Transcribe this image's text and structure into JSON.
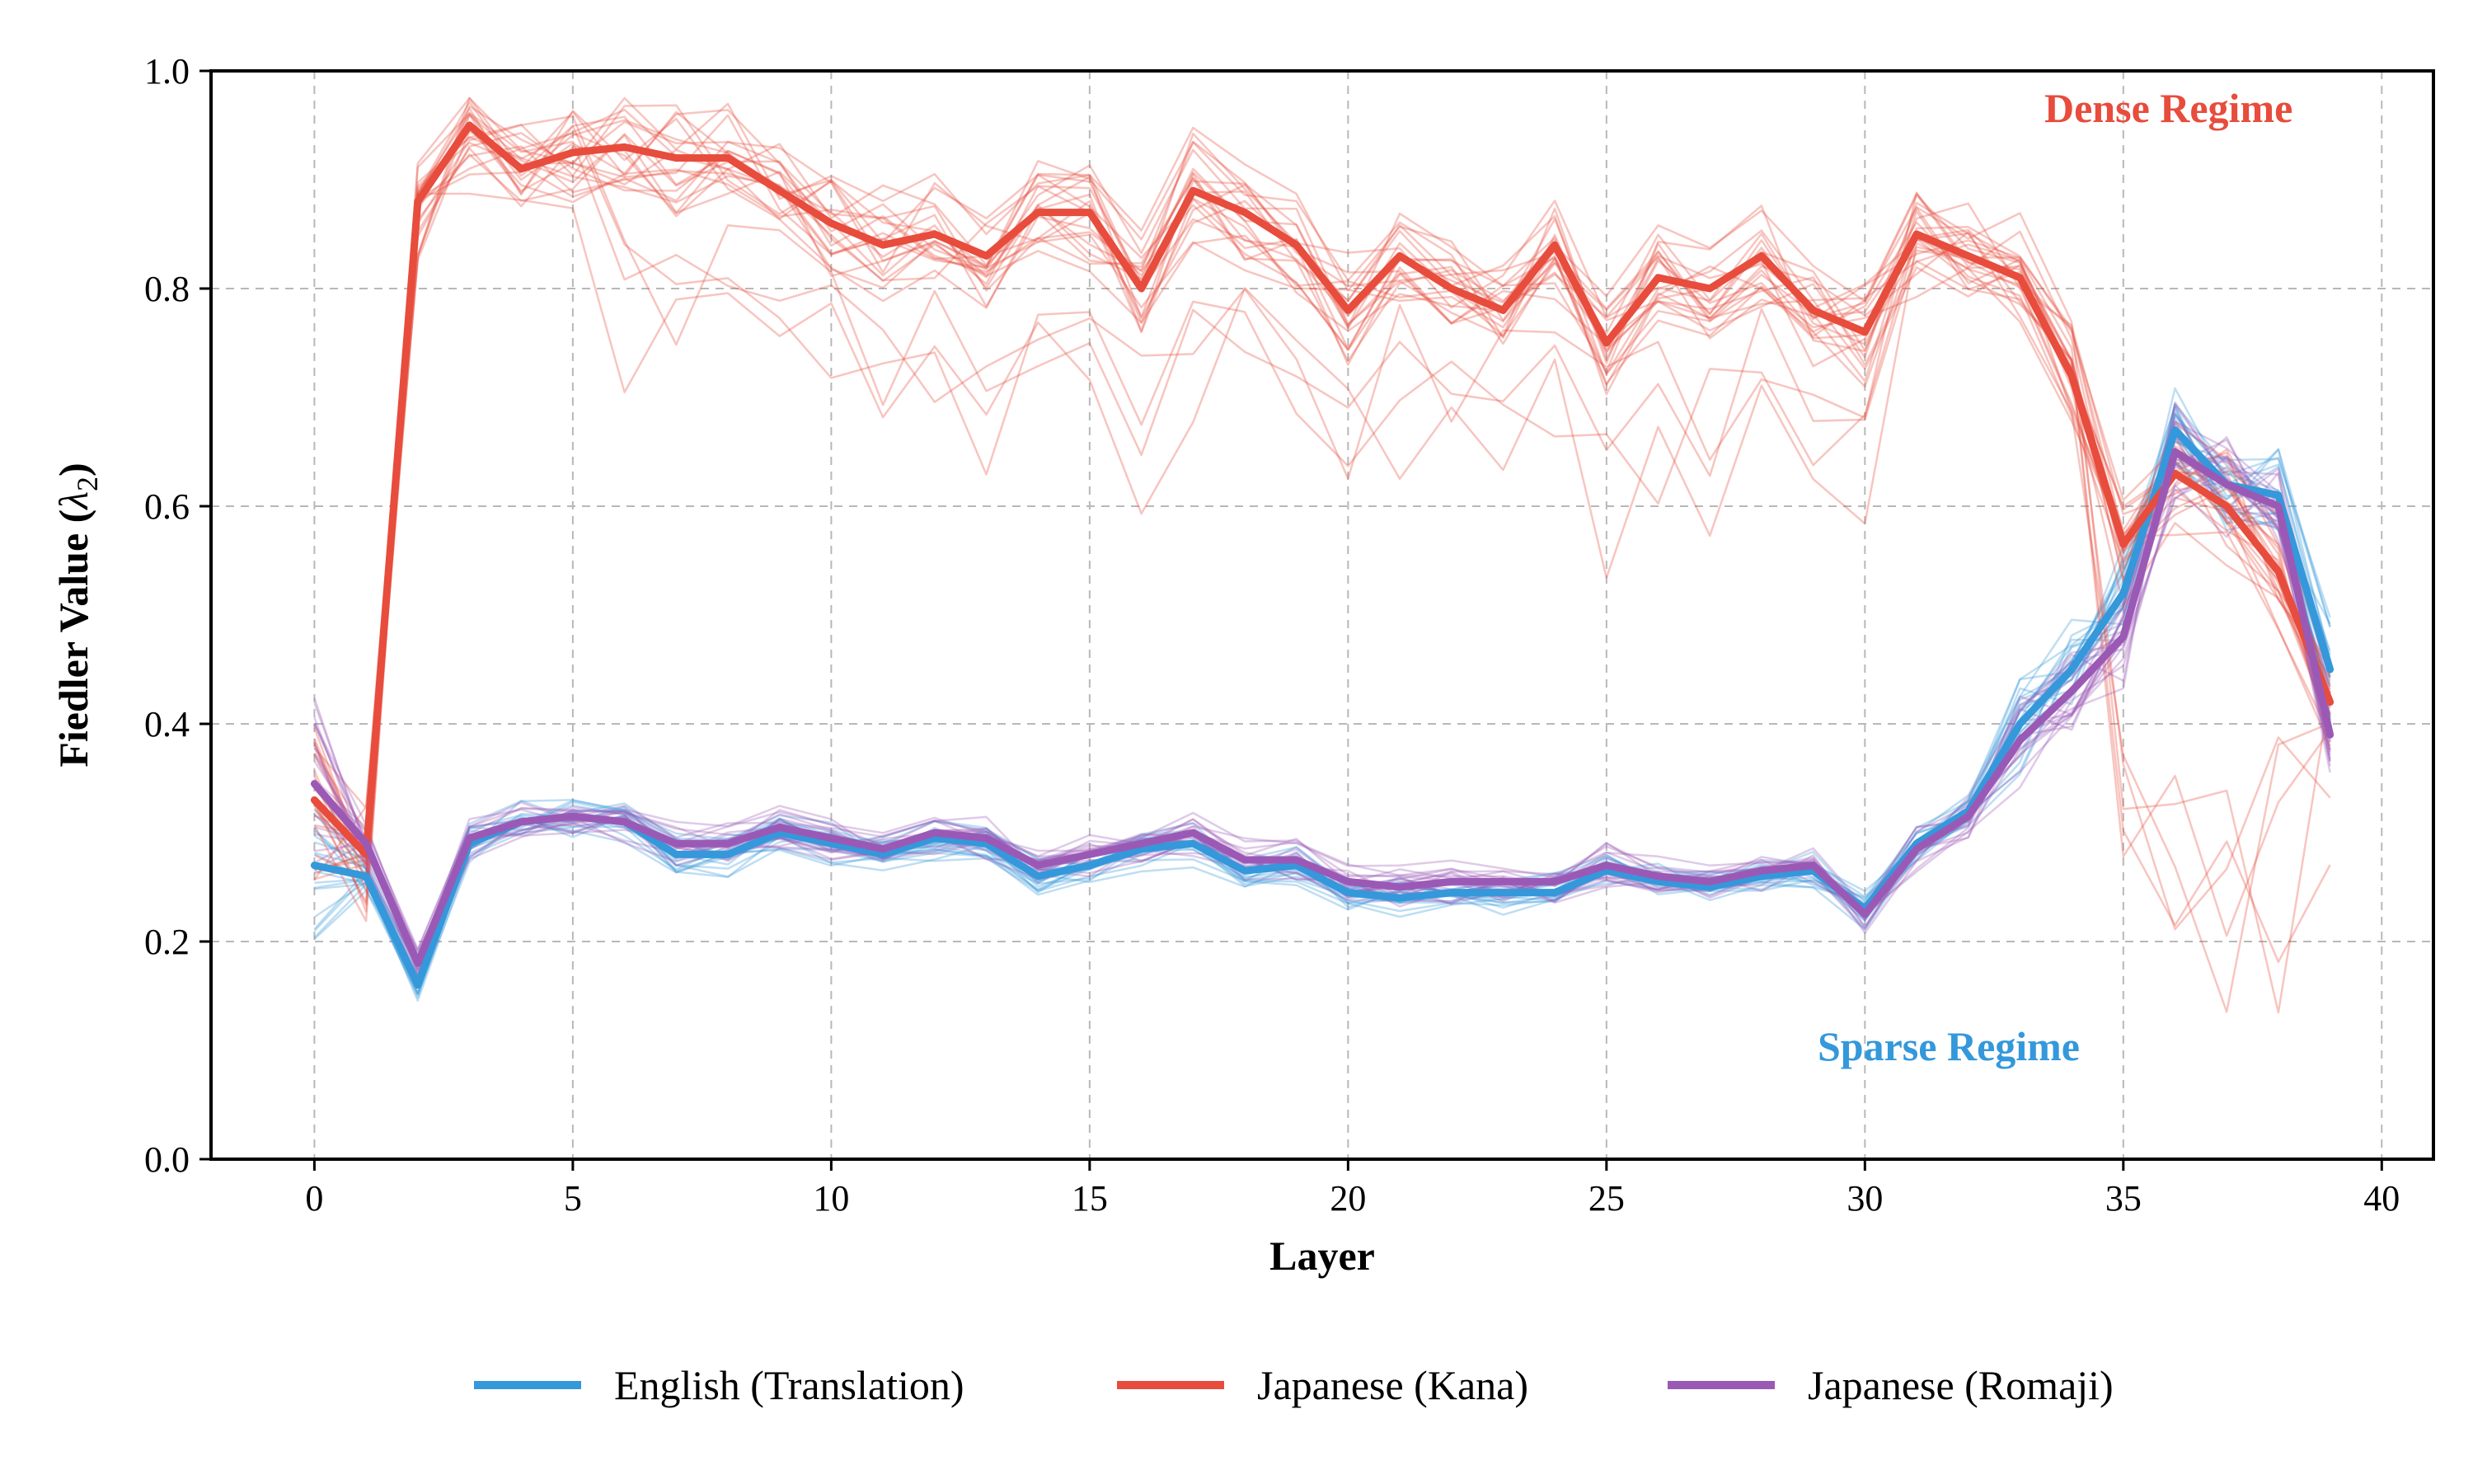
{
  "chart_data": {
    "type": "line",
    "title": "",
    "xlabel": "Layer",
    "ylabel": "Fiedler Value (λ2)",
    "ylabel_main": "Fiedler Value (",
    "ylabel_symbol": "λ",
    "ylabel_sub": "2",
    "ylabel_close": ")",
    "xlim": [
      -2,
      41
    ],
    "ylim": [
      0.0,
      1.0
    ],
    "x_ticks": [
      0,
      5,
      10,
      15,
      20,
      25,
      30,
      35,
      40
    ],
    "x_tick_labels": [
      "0",
      "5",
      "10",
      "15",
      "20",
      "25",
      "30",
      "35",
      "40"
    ],
    "y_ticks": [
      0.0,
      0.2,
      0.4,
      0.6,
      0.8,
      1.0
    ],
    "y_tick_labels": [
      "0.0",
      "0.2",
      "0.4",
      "0.6",
      "0.8",
      "1.0"
    ],
    "grid": true,
    "legend_position": "bottom-center",
    "x": [
      0,
      1,
      2,
      3,
      4,
      5,
      6,
      7,
      8,
      9,
      10,
      11,
      12,
      13,
      14,
      15,
      16,
      17,
      18,
      19,
      20,
      21,
      22,
      23,
      24,
      25,
      26,
      27,
      28,
      29,
      30,
      31,
      32,
      33,
      34,
      35,
      36,
      37,
      38,
      39
    ],
    "series": [
      {
        "name": "English (Translation)",
        "color": "#3498db",
        "values": [
          0.27,
          0.26,
          0.16,
          0.29,
          0.31,
          0.315,
          0.31,
          0.28,
          0.28,
          0.3,
          0.29,
          0.28,
          0.295,
          0.29,
          0.26,
          0.27,
          0.285,
          0.29,
          0.265,
          0.27,
          0.245,
          0.24,
          0.245,
          0.245,
          0.245,
          0.265,
          0.255,
          0.25,
          0.26,
          0.265,
          0.23,
          0.29,
          0.32,
          0.4,
          0.45,
          0.52,
          0.67,
          0.62,
          0.61,
          0.45
        ]
      },
      {
        "name": "Japanese (Kana)",
        "color": "#e74c3c",
        "values": [
          0.33,
          0.28,
          0.88,
          0.95,
          0.91,
          0.925,
          0.93,
          0.92,
          0.92,
          0.89,
          0.86,
          0.84,
          0.85,
          0.83,
          0.87,
          0.87,
          0.8,
          0.89,
          0.87,
          0.84,
          0.78,
          0.83,
          0.8,
          0.78,
          0.84,
          0.75,
          0.81,
          0.8,
          0.83,
          0.78,
          0.76,
          0.85,
          0.83,
          0.81,
          0.72,
          0.565,
          0.63,
          0.6,
          0.54,
          0.42
        ]
      },
      {
        "name": "Japanese (Romaji)",
        "color": "#9b59b6",
        "values": [
          0.345,
          0.29,
          0.18,
          0.295,
          0.31,
          0.315,
          0.31,
          0.29,
          0.29,
          0.305,
          0.295,
          0.285,
          0.3,
          0.295,
          0.27,
          0.28,
          0.29,
          0.3,
          0.275,
          0.275,
          0.255,
          0.25,
          0.255,
          0.255,
          0.255,
          0.27,
          0.26,
          0.255,
          0.265,
          0.27,
          0.225,
          0.285,
          0.315,
          0.385,
          0.43,
          0.48,
          0.65,
          0.62,
          0.6,
          0.39
        ]
      }
    ],
    "annotations": [
      {
        "text": "Dense Regime",
        "color": "#e74c3c",
        "x": 36.5,
        "y": 0.96
      },
      {
        "text": "Sparse Regime",
        "color": "#3498db",
        "x": 32.2,
        "y": 0.1
      }
    ]
  }
}
